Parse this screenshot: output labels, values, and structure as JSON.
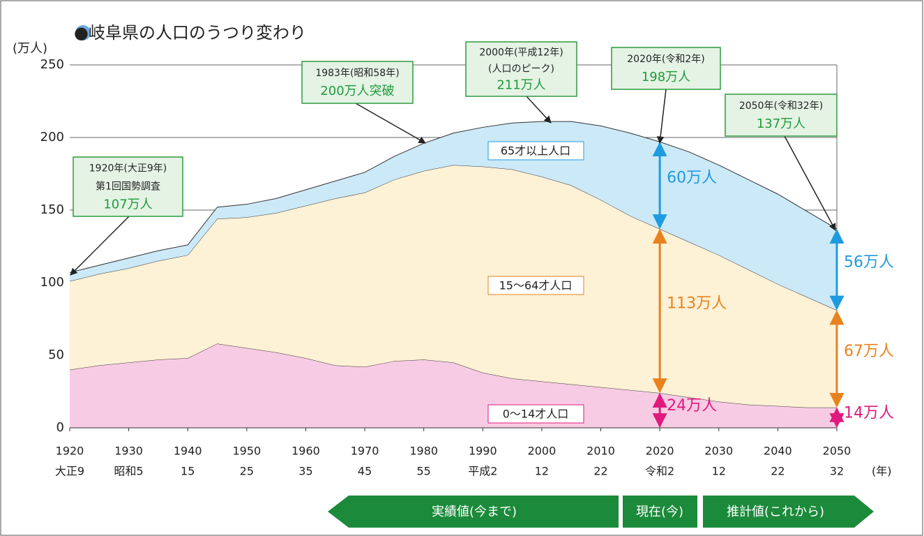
{
  "chart_data": {
    "type": "stacked_area",
    "title": "●岐阜県の人口のうつり変わり",
    "y_label": "(万人)",
    "x_label": "(年)",
    "x": [
      1920,
      1925,
      1930,
      1935,
      1940,
      1945,
      1950,
      1955,
      1960,
      1965,
      1970,
      1975,
      1980,
      1985,
      1990,
      1995,
      2000,
      2005,
      2010,
      2015,
      2020,
      2025,
      2030,
      2035,
      2040,
      2045,
      2050
    ],
    "series": [
      {
        "name": "0〜14才人口",
        "color": "#f8cbe4",
        "label_color": "#e0197d",
        "values": [
          40,
          43,
          45,
          47,
          48,
          58,
          55,
          52,
          48,
          43,
          42,
          46,
          47,
          45,
          38,
          34,
          32,
          30,
          28,
          26,
          24,
          21,
          18,
          16,
          15,
          14,
          14
        ]
      },
      {
        "name": "15〜64才人口",
        "color": "#fdf1d6",
        "label_color": "#e8821e",
        "values": [
          61,
          63,
          65,
          68,
          71,
          86,
          90,
          96,
          105,
          115,
          120,
          125,
          130,
          136,
          142,
          144,
          141,
          137,
          129,
          120,
          113,
          107,
          101,
          93,
          84,
          76,
          67
        ]
      },
      {
        "name": "65才以上人口",
        "color": "#cce9f8",
        "label_color": "#1e9be0",
        "values": [
          6,
          6,
          7,
          7,
          7,
          8,
          9,
          10,
          11,
          12,
          14,
          16,
          19,
          22,
          27,
          32,
          38,
          44,
          51,
          57,
          60,
          62,
          62,
          62,
          62,
          59,
          56
        ]
      }
    ],
    "xlim": [
      1920,
      2050
    ],
    "xticks": [
      1920,
      1930,
      1940,
      1950,
      1960,
      1970,
      1980,
      1990,
      2000,
      2010,
      2020,
      2030,
      2040,
      2050
    ],
    "era_labels": [
      "大正9",
      "昭和5",
      "15",
      "25",
      "35",
      "45",
      "55",
      "平成2",
      "12",
      "22",
      "令和2",
      "12",
      "22",
      "32"
    ],
    "ylim": [
      0,
      250
    ],
    "yticks": [
      0,
      50,
      100,
      150,
      200,
      250
    ],
    "grid": true,
    "value_annotations": [
      "60万人",
      "113万人",
      "24万人",
      "56万人",
      "67万人",
      "14万人"
    ],
    "callouts": [
      {
        "lines": [
          "1920年(大正9年)",
          "第1回国勢調査",
          "107万人"
        ]
      },
      {
        "lines": [
          "1983年(昭和58年)",
          "200万人突破"
        ]
      },
      {
        "lines": [
          "2000年(平成12年)",
          "(人口のピーク)",
          "211万人"
        ]
      },
      {
        "lines": [
          "2020年(令和2年)",
          "198万人"
        ]
      },
      {
        "lines": [
          "2050年(令和32年)",
          "137万人"
        ]
      }
    ],
    "phases": [
      "実績値(今まで)",
      "現在(今)",
      "推計値(これから)"
    ]
  }
}
